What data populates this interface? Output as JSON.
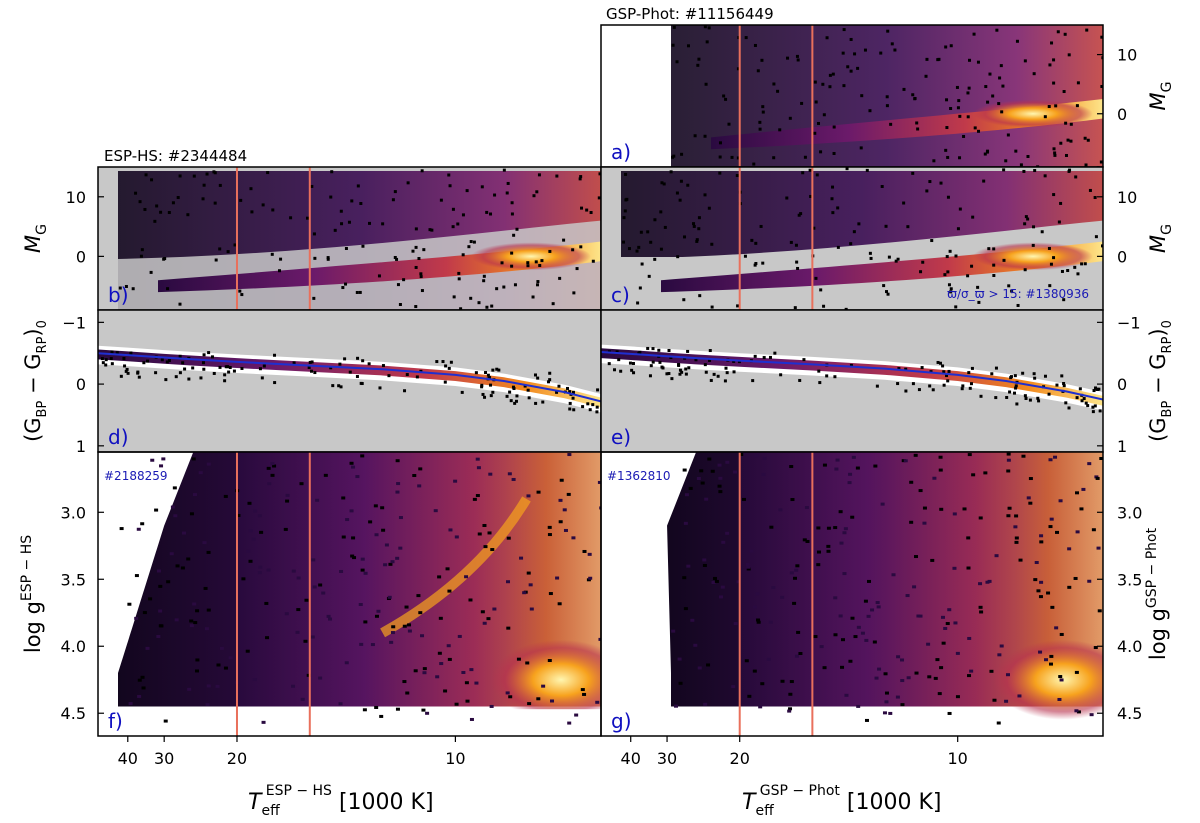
{
  "figure": {
    "count_top_right": "GSP-Phot: #11156449",
    "count_left": "ESP-HS: #2344484",
    "xlabel_left": {
      "main": "T",
      "sub": "eff",
      "sup": "ESP − HS",
      "unit": " [1000 K]"
    },
    "xlabel_right": {
      "main": "T",
      "sub": "eff",
      "sup": "GSP − Phot",
      "unit": " [1000 K]"
    },
    "colors": {
      "panel_label": "#1010c0",
      "annotation": "#1a1ab4",
      "mask_gray": "#c8c8c8",
      "fit_line": "#1f2fd0"
    }
  },
  "chart_data": [
    {
      "id": "a",
      "type": "heatmap",
      "label": "a)",
      "xaxis": {
        "scale": "reciprocal",
        "range": [
          55,
          7.5
        ],
        "ticks": [],
        "label": ""
      },
      "yaxis": {
        "range": [
          15,
          -9
        ],
        "ticks": [
          0,
          10
        ],
        "tick_labels": [
          "0",
          "10"
        ],
        "side": "right",
        "label": {
          "main": "M",
          "sub": "G"
        }
      },
      "density": "HR diagram: main sequence from hot (M_G ~ -3) to cool (M_G ~ 3), white-dwarf band at M_G ~ 10-12"
    },
    {
      "id": "b",
      "type": "heatmap",
      "label": "b)",
      "xaxis": {
        "scale": "reciprocal",
        "range": [
          55,
          7.5
        ],
        "ticks": []
      },
      "yaxis": {
        "range": [
          15,
          -9
        ],
        "ticks": [
          0,
          10
        ],
        "tick_labels": [
          "0",
          "10"
        ],
        "side": "left",
        "label": {
          "main": "M",
          "sub": "G"
        }
      },
      "mask": "gray region below the main-sequence envelope"
    },
    {
      "id": "c",
      "type": "heatmap",
      "label": "c)",
      "annotation": "ϖ/σ_ϖ  > 15: #1380936",
      "xaxis": {
        "scale": "reciprocal",
        "range": [
          55,
          7.5
        ],
        "ticks": []
      },
      "yaxis": {
        "range": [
          15,
          -9
        ],
        "ticks": [
          0,
          10
        ],
        "tick_labels": [
          "0",
          "10"
        ],
        "side": "right",
        "label": {
          "main": "M",
          "sub": "G"
        }
      },
      "mask": "gray region below the main-sequence envelope"
    },
    {
      "id": "d",
      "type": "heatmap",
      "label": "d)",
      "xaxis": {
        "scale": "reciprocal",
        "range": [
          55,
          7.5
        ],
        "ticks": []
      },
      "yaxis": {
        "range": [
          -1.2,
          1.1
        ],
        "ticks": [
          -1,
          0,
          1
        ],
        "tick_labels": [
          "−1",
          "0",
          "1"
        ],
        "side": "left",
        "label": {
          "open": "(G",
          "sub1": "BP",
          "mid": " − G",
          "sub2": "RP",
          "close": ")",
          "sub3": "0"
        }
      },
      "fit_curve": {
        "x": [
          55,
          40,
          30,
          25,
          20,
          15,
          12,
          10,
          9,
          8,
          7.5
        ],
        "y": [
          -0.5,
          -0.47,
          -0.43,
          -0.4,
          -0.36,
          -0.3,
          -0.24,
          -0.15,
          -0.05,
          0.13,
          0.28
        ]
      }
    },
    {
      "id": "e",
      "type": "heatmap",
      "label": "e)",
      "xaxis": {
        "scale": "reciprocal",
        "range": [
          55,
          7.5
        ],
        "ticks": []
      },
      "yaxis": {
        "range": [
          -1.2,
          1.1
        ],
        "ticks": [
          -1,
          0,
          1
        ],
        "tick_labels": [
          "−1",
          "0",
          "1"
        ],
        "side": "right",
        "label": {
          "open": "(G",
          "sub1": "BP",
          "mid": " − G",
          "sub2": "RP",
          "close": ")",
          "sub3": "0"
        }
      },
      "fit_curve": {
        "x": [
          55,
          40,
          30,
          25,
          20,
          15,
          12,
          10,
          9,
          8,
          7.5
        ],
        "y": [
          -0.52,
          -0.49,
          -0.45,
          -0.42,
          -0.38,
          -0.32,
          -0.25,
          -0.15,
          -0.05,
          0.12,
          0.25
        ]
      }
    },
    {
      "id": "f",
      "type": "heatmap",
      "label": "f)",
      "annotation": "#2188259",
      "xaxis": {
        "scale": "reciprocal",
        "range": [
          55,
          7.5
        ],
        "ticks": [
          40,
          30,
          20,
          10
        ],
        "tick_labels": [
          "40",
          "30",
          "20",
          "10"
        ]
      },
      "yaxis": {
        "range": [
          2.55,
          4.67
        ],
        "ticks": [
          3.0,
          3.5,
          4.0,
          4.5
        ],
        "tick_labels": [
          "3.0",
          "3.5",
          "4.0",
          "4.5"
        ],
        "side": "left",
        "label": {
          "main": "log g",
          "sup": "ESP − HS"
        }
      }
    },
    {
      "id": "g",
      "type": "heatmap",
      "label": "g)",
      "annotation": "#1362810",
      "xaxis": {
        "scale": "reciprocal",
        "range": [
          55,
          7.5
        ],
        "ticks": [
          40,
          30,
          20,
          10
        ],
        "tick_labels": [
          "40",
          "30",
          "20",
          "10"
        ]
      },
      "yaxis": {
        "range": [
          2.55,
          4.67
        ],
        "ticks": [
          3.0,
          3.5,
          4.0,
          4.5
        ],
        "tick_labels": [
          "3.0",
          "3.5",
          "4.0",
          "4.5"
        ],
        "side": "right",
        "label": {
          "main": "log g",
          "sup": "GSP − Phot"
        }
      }
    }
  ]
}
